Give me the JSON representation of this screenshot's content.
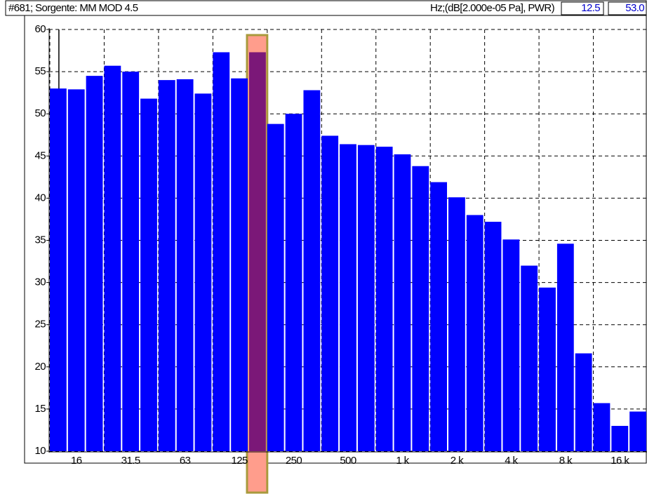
{
  "chart_data": {
    "type": "bar",
    "title": "#681; Sorgente: MM MOD 4.5",
    "units": "Hz;(dB[2.000e-05 Pa], PWR)",
    "readout": [
      "12.5",
      "53.0"
    ],
    "categories": [
      null,
      "16",
      null,
      null,
      "31.5",
      null,
      null,
      "63",
      null,
      null,
      "125",
      null,
      null,
      "250",
      null,
      null,
      "500",
      null,
      null,
      "1 k",
      null,
      null,
      "2 k",
      null,
      null,
      "4 k",
      null,
      null,
      "8 k",
      null,
      null,
      "16 k",
      null
    ],
    "values": [
      53.0,
      52.9,
      54.5,
      55.7,
      55.0,
      51.8,
      54.0,
      54.1,
      52.4,
      57.3,
      54.2,
      57.3,
      48.8,
      50.0,
      52.8,
      47.4,
      46.4,
      46.3,
      46.1,
      45.2,
      43.8,
      41.9,
      40.1,
      38.0,
      37.2,
      35.1,
      32.0,
      29.4,
      34.6,
      21.6,
      15.7,
      13.0,
      14.7
    ],
    "color": "#0000ff",
    "selected": 11,
    "selected_color": "#7b1878",
    "ylim": [
      10,
      60
    ],
    "yticks": [
      10,
      15,
      20,
      25,
      30,
      35,
      40,
      45,
      50,
      55,
      60
    ],
    "grid": true
  }
}
